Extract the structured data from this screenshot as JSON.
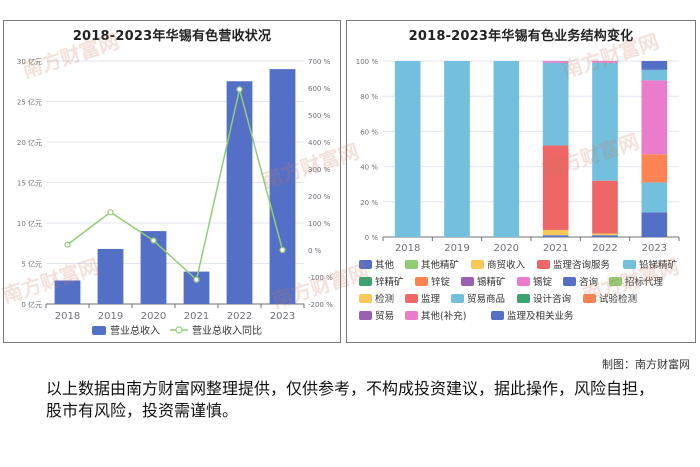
{
  "left_chart": {
    "title": "2018-2023年华锡有色营收状况"
  },
  "right_chart": {
    "title": "2018-2023年华锡有色业务结构变化"
  },
  "watermark": "南方财富网",
  "credit": "制图：南方财富网",
  "disclaimer": "以上数据由南方财富网整理提供，仅供参考，不构成投资建议，据此操作，风险自担，股市有风险，投资需谨慎。",
  "colors": {
    "bar": "#5470c6",
    "line": "#91cc75",
    "axis": "#6e7079"
  },
  "chart_data": [
    {
      "type": "bar",
      "title": "2018-2023年华锡有色营收状况",
      "categories": [
        "2018",
        "2019",
        "2020",
        "2021",
        "2022",
        "2023"
      ],
      "series": [
        {
          "name": "营业总收入",
          "type": "bar",
          "axis": "left",
          "values": [
            2.9,
            6.8,
            9.0,
            4.0,
            27.5,
            29.0
          ]
        },
        {
          "name": "营业总收入同比",
          "type": "line",
          "axis": "right",
          "values": [
            20,
            140,
            35,
            -110,
            595,
            0
          ]
        }
      ],
      "yleft": {
        "min": 0,
        "max": 30,
        "ticks": [
          0,
          5,
          10,
          15,
          20,
          25,
          30
        ],
        "unit": "亿元"
      },
      "yright": {
        "min": -200,
        "max": 700,
        "ticks": [
          -200,
          -100,
          0,
          100,
          200,
          300,
          400,
          500,
          600,
          700
        ],
        "unit": "%"
      },
      "legend_position": "bottom",
      "grid": true
    },
    {
      "type": "bar",
      "stacked": true,
      "title": "2018-2023年华锡有色业务结构变化",
      "categories": [
        "2018",
        "2019",
        "2020",
        "2021",
        "2022",
        "2023"
      ],
      "ylim": [
        0,
        100
      ],
      "yticks": [
        0,
        20,
        40,
        60,
        80,
        100
      ],
      "yunit": "%",
      "series": [
        {
          "name": "其他",
          "color": "#5470c6",
          "values": [
            0,
            0,
            0,
            1,
            1,
            14
          ]
        },
        {
          "name": "其他精矿",
          "color": "#91cc75",
          "values": [
            0,
            0,
            0,
            0,
            0,
            0
          ]
        },
        {
          "name": "商贸收入",
          "color": "#fac858",
          "values": [
            0,
            0,
            0,
            3,
            1,
            0
          ]
        },
        {
          "name": "监理咨询服务",
          "color": "#ee6666",
          "values": [
            0,
            0,
            0,
            48,
            30,
            0
          ]
        },
        {
          "name": "铅锑精矿",
          "color": "#73c0de",
          "values": [
            100,
            100,
            100,
            47,
            67,
            17
          ]
        },
        {
          "name": "锌精矿",
          "color": "#3ba272",
          "values": [
            0,
            0,
            0,
            0,
            0,
            0
          ]
        },
        {
          "name": "锌锭",
          "color": "#fc8452",
          "values": [
            0,
            0,
            0,
            0,
            0,
            16
          ]
        },
        {
          "name": "锡精矿",
          "color": "#9a60b4",
          "values": [
            0,
            0,
            0,
            0,
            0,
            0
          ]
        },
        {
          "name": "锡锭",
          "color": "#ea7ccc",
          "values": [
            0,
            0,
            0,
            1,
            1,
            42
          ]
        },
        {
          "name": "咨询",
          "color": "#5470c6",
          "values": [
            0,
            0,
            0,
            0,
            0,
            0
          ]
        },
        {
          "name": "招标代理",
          "color": "#91cc75",
          "values": [
            0,
            0,
            0,
            0,
            0,
            0
          ]
        },
        {
          "name": "检测",
          "color": "#fac858",
          "values": [
            0,
            0,
            0,
            0,
            0,
            0
          ]
        },
        {
          "name": "监理",
          "color": "#ee6666",
          "values": [
            0,
            0,
            0,
            0,
            0,
            0
          ]
        },
        {
          "name": "贸易商品",
          "color": "#73c0de",
          "values": [
            0,
            0,
            0,
            0,
            0,
            6
          ]
        },
        {
          "name": "设计咨询",
          "color": "#3ba272",
          "values": [
            0,
            0,
            0,
            0,
            0,
            0
          ]
        },
        {
          "name": "试验检测",
          "color": "#fc8452",
          "values": [
            0,
            0,
            0,
            0,
            0,
            0
          ]
        },
        {
          "name": "贸易",
          "color": "#9a60b4",
          "values": [
            0,
            0,
            0,
            0,
            0,
            0
          ]
        },
        {
          "name": "其他(补充)",
          "color": "#ea7ccc",
          "values": [
            0,
            0,
            0,
            0,
            0,
            0
          ]
        },
        {
          "name": "监理及相关业务",
          "color": "#5470c6",
          "values": [
            0,
            0,
            0,
            0,
            0,
            5
          ]
        }
      ],
      "legend_position": "bottom",
      "grid": true
    }
  ]
}
